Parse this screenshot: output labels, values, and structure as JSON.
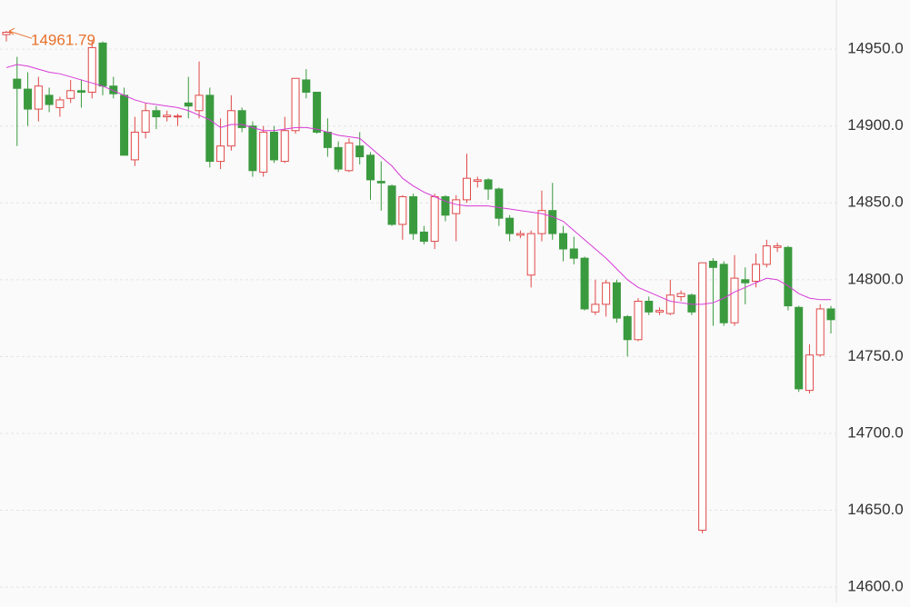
{
  "chart_data": {
    "type": "candlestick",
    "open": [
      14959.5,
      14930.5,
      14924,
      14911,
      14920,
      14912,
      14918,
      14923,
      14922,
      14954,
      14926,
      14920,
      14878,
      14896,
      14910,
      14906,
      14906,
      14915,
      14910,
      14920,
      14877,
      14887,
      14910,
      14900,
      14870,
      14896,
      14877,
      14897,
      14930,
      14922,
      14896,
      14886,
      14871,
      14887,
      14881,
      14864,
      14861,
      14836,
      14854,
      14831,
      14825,
      14854,
      14843,
      14852,
      14864,
      14865,
      14859,
      14840,
      14829,
      14803,
      14830,
      14845,
      14830,
      14820,
      14814,
      14779,
      14784,
      14798,
      14776,
      14761,
      14786,
      14779,
      14778,
      14789,
      14790,
      14637,
      14812,
      14810,
      14772,
      14800,
      14799,
      14810,
      14821,
      14821,
      14782,
      14728,
      14751,
      14781
    ],
    "high": [
      14961.79,
      14945,
      14935,
      14932,
      14925,
      14919,
      14930,
      14930,
      14956,
      14955,
      14932,
      14925,
      14906,
      14915,
      14913,
      14910,
      14908,
      14932,
      14942,
      14925,
      14905,
      14920,
      14912,
      14903,
      14900,
      14900,
      14906,
      14931,
      14937,
      14922,
      14905,
      14890,
      14892,
      14896,
      14883,
      14877,
      14862,
      14855,
      14856,
      14835,
      14856,
      14855,
      14855,
      14882,
      14867,
      14866,
      14860,
      14842,
      14832,
      14832,
      14858,
      14863,
      14835,
      14828,
      14815,
      14800,
      14800,
      14800,
      14777,
      14788,
      14789,
      14782,
      14800,
      14793,
      14791,
      14811,
      14814,
      14812,
      14816,
      14808,
      14817,
      14826,
      14824,
      14822,
      14783,
      14758,
      14784,
      14783
    ],
    "low": [
      14955,
      14887,
      14900,
      14903,
      14909,
      14906,
      14915,
      14912,
      14918,
      14920,
      14918,
      14881,
      14874,
      14892,
      14898,
      14903,
      14900,
      14905,
      14905,
      14873,
      14872,
      14884,
      14896,
      14867,
      14867,
      14876,
      14876,
      14895,
      14918,
      14895,
      14880,
      14870,
      14870,
      14875,
      14852,
      14845,
      14835,
      14826,
      14826,
      14823,
      14820,
      14838,
      14825,
      14850,
      14860,
      14852,
      14835,
      14825,
      14827,
      14795,
      14825,
      14826,
      14812,
      14810,
      14780,
      14777,
      14776,
      14772,
      14750,
      14760,
      14777,
      14777,
      14777,
      14786,
      14777,
      14635,
      14770,
      14770,
      14770,
      14784,
      14795,
      14808,
      14818,
      14780,
      14727,
      14726,
      14750,
      14765
    ],
    "close": [
      14961,
      14924.5,
      14911,
      14926,
      14914,
      14917,
      14923,
      14922,
      14951,
      14926,
      14921,
      14881,
      14896,
      14910,
      14906,
      14907,
      14906.5,
      14913,
      14920,
      14877,
      14887,
      14910,
      14899,
      14871,
      14896,
      14878,
      14897,
      14931,
      14922,
      14896,
      14886,
      14872,
      14889,
      14880,
      14865,
      14863,
      14836,
      14854,
      14830,
      14825,
      14854,
      14842,
      14852,
      14866,
      14865,
      14859,
      14840,
      14830,
      14830,
      14830,
      14845,
      14830,
      14820,
      14814,
      14781,
      14784,
      14798,
      14775,
      14761,
      14786,
      14779,
      14780,
      14790,
      14791,
      14779,
      14811,
      14808,
      14772,
      14801,
      14798,
      14810,
      14822,
      14822,
      14783,
      14729,
      14751,
      14781,
      14774
    ],
    "ma": [
      14938,
      14940,
      14939,
      14937,
      14935,
      14934,
      14932,
      14930,
      14928,
      14926,
      14923,
      14920,
      14917,
      14915,
      14914,
      14913,
      14912,
      14910,
      14907,
      14904,
      14899,
      14901,
      14901,
      14899,
      14897,
      14897,
      14898,
      14899,
      14899,
      14898,
      14896,
      14894,
      14893,
      14892,
      14886,
      14880,
      14874,
      14866,
      14861,
      14857,
      14854,
      14851,
      14849,
      14848,
      14848,
      14848,
      14847,
      14846,
      14845,
      14844,
      14843,
      14841,
      14838,
      14832,
      14826,
      14820,
      14814,
      14807,
      14800,
      14795,
      14792,
      14789,
      14786,
      14785,
      14784,
      14784,
      14785,
      14788,
      14792,
      14795,
      14798,
      14801,
      14800,
      14796,
      14791,
      14788,
      14787,
      14787
    ],
    "up_color": "#e04848",
    "down_color": "#3a9a3e",
    "ma_color": "#d63ad6",
    "label_color": "#e8702a",
    "ylim": [
      14590,
      14982
    ],
    "yticks": [
      {
        "value": 14600,
        "label": "14600.0"
      },
      {
        "value": 14650,
        "label": "14650.0"
      },
      {
        "value": 14700,
        "label": "14700.0"
      },
      {
        "value": 14750,
        "label": "14750.0"
      },
      {
        "value": 14800,
        "label": "14800.0"
      },
      {
        "value": 14850,
        "label": "14850.0"
      },
      {
        "value": 14900,
        "label": "14900.0"
      },
      {
        "value": 14950,
        "label": "14950.0"
      }
    ],
    "grid": true
  }
}
